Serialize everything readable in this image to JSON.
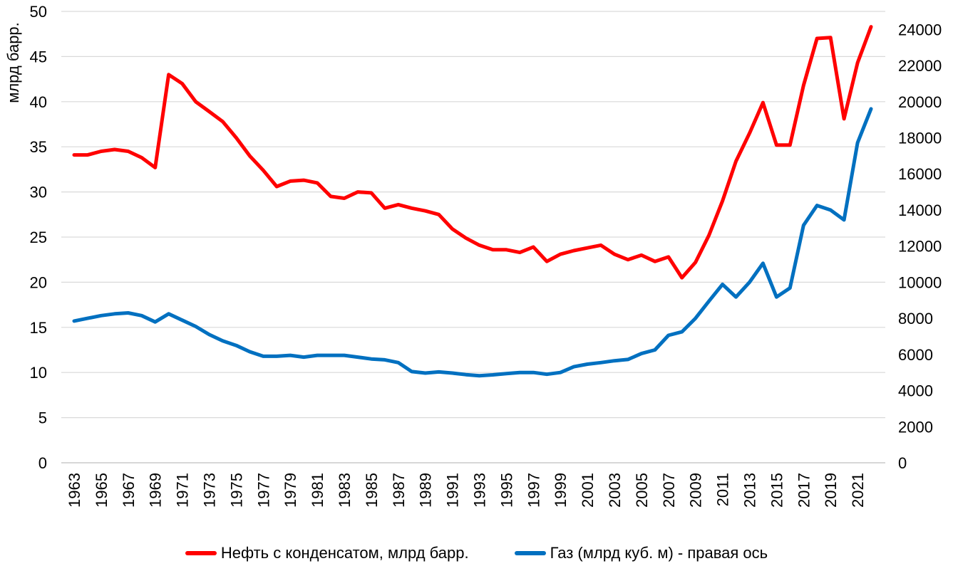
{
  "chart_data": {
    "type": "line",
    "title": "",
    "ylabel": "млрд барр.",
    "y2label": "",
    "x": [
      "1963",
      "1964",
      "1965",
      "1966",
      "1967",
      "1968",
      "1969",
      "1970",
      "1971",
      "1972",
      "1973",
      "1974",
      "1975",
      "1976",
      "1977",
      "1978",
      "1979",
      "1980",
      "1981",
      "1982",
      "1983",
      "1984",
      "1985",
      "1986",
      "1987",
      "1988",
      "1989",
      "1990",
      "1991",
      "1992",
      "1993",
      "1994",
      "1995",
      "1996",
      "1997",
      "1998",
      "1999",
      "2000",
      "2001",
      "2002",
      "2003",
      "2004",
      "2005",
      "2006",
      "2007",
      "2008",
      "2009",
      "2010",
      "2011",
      "2012",
      "2013",
      "2014",
      "2015",
      "2016",
      "2017",
      "2018",
      "2019",
      "2020",
      "2021",
      "2022"
    ],
    "x_tick_labels": [
      "1963",
      "1965",
      "1967",
      "1969",
      "1971",
      "1973",
      "1975",
      "1977",
      "1979",
      "1981",
      "1983",
      "1985",
      "1987",
      "1989",
      "1991",
      "1993",
      "1995",
      "1997",
      "1999",
      "2001",
      "2003",
      "2005",
      "2007",
      "2009",
      "2011",
      "2013",
      "2015",
      "2017",
      "2019",
      "2021"
    ],
    "ylim": [
      0,
      50
    ],
    "y_ticks": [
      0,
      5,
      10,
      15,
      20,
      25,
      30,
      35,
      40,
      45,
      50
    ],
    "y2lim": [
      0,
      25000
    ],
    "y2_ticks": [
      0,
      2000,
      4000,
      6000,
      8000,
      10000,
      12000,
      14000,
      16000,
      18000,
      20000,
      22000,
      24000
    ],
    "grid": true,
    "legend_position": "bottom",
    "series": [
      {
        "name": "Нефть с конденсатом, млрд барр.",
        "axis": "left",
        "color": "#ff0000",
        "values": [
          34.1,
          34.1,
          34.5,
          34.7,
          34.5,
          33.8,
          32.7,
          43.0,
          42.0,
          40.0,
          38.9,
          37.8,
          36.0,
          34.0,
          32.4,
          30.6,
          31.2,
          31.3,
          31.0,
          29.5,
          29.3,
          30.0,
          29.9,
          28.2,
          28.6,
          28.2,
          27.9,
          27.5,
          25.9,
          24.9,
          24.1,
          23.6,
          23.6,
          23.3,
          23.9,
          22.3,
          23.1,
          23.5,
          23.8,
          24.1,
          23.1,
          22.5,
          23.0,
          22.3,
          22.8,
          20.5,
          22.2,
          25.2,
          29.0,
          33.4,
          36.5,
          39.9,
          35.2,
          35.2,
          41.8,
          47.0,
          47.1,
          38.1,
          44.3,
          48.3
        ]
      },
      {
        "name": "Газ (млрд куб. м) - правая ось",
        "axis": "right",
        "color": "#0070c0",
        "values": [
          7850,
          8000,
          8150,
          8250,
          8300,
          8150,
          7800,
          8250,
          7900,
          7550,
          7100,
          6750,
          6500,
          6150,
          5900,
          5900,
          5950,
          5850,
          5950,
          5950,
          5950,
          5850,
          5750,
          5700,
          5550,
          5050,
          4970,
          5030,
          4970,
          4880,
          4820,
          4870,
          4940,
          5000,
          5000,
          4900,
          5000,
          5320,
          5460,
          5550,
          5650,
          5720,
          6050,
          6250,
          7060,
          7250,
          8000,
          8950,
          9880,
          9180,
          10000,
          11050,
          9180,
          9680,
          13150,
          14250,
          14000,
          13450,
          17720,
          19600
        ]
      }
    ]
  }
}
